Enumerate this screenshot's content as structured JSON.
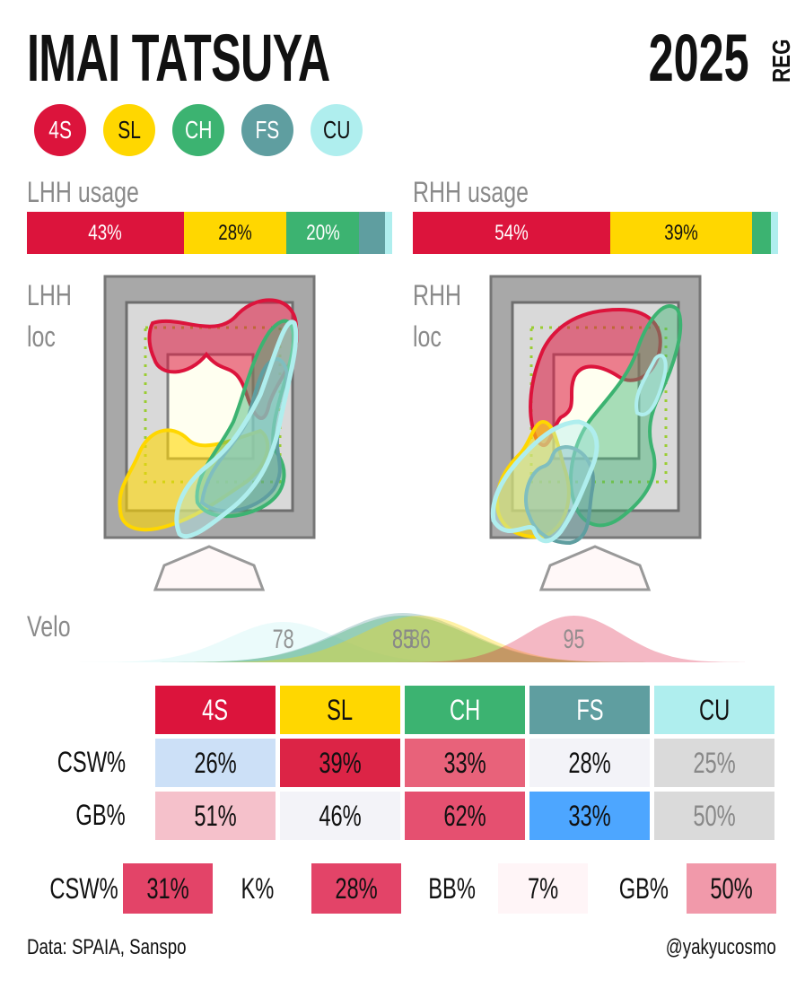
{
  "header": {
    "player_name": "IMAI TATSUYA",
    "season_year": "2025",
    "season_type": "REG"
  },
  "colors": {
    "4S": "#dc143c",
    "SL": "#ffd700",
    "CH": "#3cb371",
    "FS": "#5f9ea0",
    "CU": "#afeeee"
  },
  "pitches": [
    "4S",
    "SL",
    "CH",
    "FS",
    "CU"
  ],
  "labels": {
    "lhh_usage": "LHH usage",
    "rhh_usage": "RHH usage",
    "lhh_loc_1": "LHH",
    "lhh_loc_2": "loc",
    "rhh_loc_1": "RHH",
    "rhh_loc_2": "loc",
    "velo": "Velo"
  },
  "chart_data": [
    {
      "type": "bar",
      "title": "LHH usage",
      "categories": [
        "4S",
        "SL",
        "CH",
        "FS",
        "CU"
      ],
      "values": [
        43,
        28,
        20,
        7,
        2
      ],
      "value_labels": [
        "43%",
        "28%",
        "20%",
        "",
        ""
      ]
    },
    {
      "type": "bar",
      "title": "RHH usage",
      "categories": [
        "4S",
        "SL",
        "CH",
        "FS",
        "CU"
      ],
      "values": [
        54,
        39,
        5,
        0,
        2
      ],
      "value_labels": [
        "54%",
        "39%",
        "",
        "",
        ""
      ]
    },
    {
      "type": "area",
      "title": "Velo",
      "series": [
        {
          "name": "CU",
          "peak": 78
        },
        {
          "name": "FS",
          "peak": 85
        },
        {
          "name": "CH",
          "peak": 85
        },
        {
          "name": "SL",
          "peak": 86
        },
        {
          "name": "4S",
          "peak": 95
        }
      ],
      "peak_labels": [
        "78",
        "85",
        "85",
        "86",
        "95"
      ]
    },
    {
      "type": "table",
      "columns": [
        "4S",
        "SL",
        "CH",
        "FS",
        "CU"
      ],
      "rows": [
        {
          "label": "CSW%",
          "values": [
            "26%",
            "39%",
            "33%",
            "28%",
            "25%"
          ],
          "bg": [
            "#cce0f7",
            "#dc2446",
            "#e8627a",
            "#f3f3f8",
            "#dadada"
          ],
          "fg": [
            "#111",
            "#111",
            "#111",
            "#111",
            "#888"
          ]
        },
        {
          "label": "GB%",
          "values": [
            "51%",
            "46%",
            "62%",
            "33%",
            "50%"
          ],
          "bg": [
            "#f5c1cb",
            "#f3f3f8",
            "#e55070",
            "#4da6ff",
            "#dadada"
          ],
          "fg": [
            "#111",
            "#111",
            "#111",
            "#111",
            "#888"
          ]
        }
      ]
    }
  ],
  "summary": [
    {
      "label": "CSW%",
      "value": "31%",
      "bg": "#e34468"
    },
    {
      "label": "K%",
      "value": "28%",
      "bg": "#e34468"
    },
    {
      "label": "BB%",
      "value": "7%",
      "bg": "#fff5f7"
    },
    {
      "label": "GB%",
      "value": "50%",
      "bg": "#f199aa"
    }
  ],
  "footer": {
    "source": "Data: SPAIA, Sanspo",
    "author": "@yakyucosmo"
  }
}
